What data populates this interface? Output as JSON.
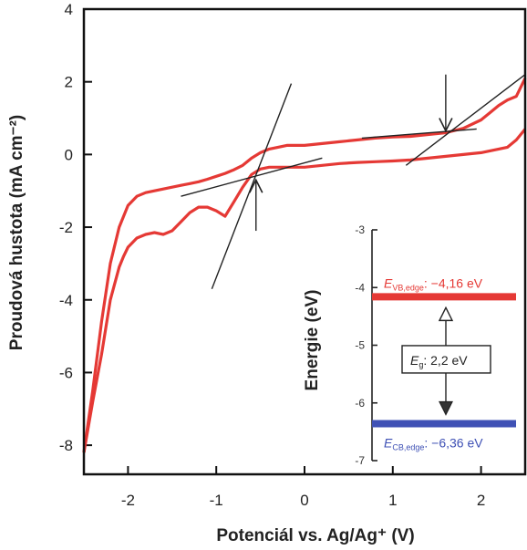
{
  "chart_data": {
    "type": "line",
    "xlabel": "Potenciál vs. Ag/Ag⁺ (V)",
    "ylabel": "Proudová hustota (mA cm⁻²)",
    "xlim": [
      -2.5,
      2.5
    ],
    "ylim": [
      -8.8,
      4.0
    ],
    "xticks": [
      -2,
      -1,
      0,
      1,
      2
    ],
    "yticks": [
      -8,
      -6,
      -4,
      -2,
      0,
      2,
      4
    ],
    "colors": {
      "series": "#e53935",
      "tangent": "#222222",
      "vb": "#e53935",
      "cb": "#3f51b5"
    },
    "series": [
      {
        "x": [
          -2.5,
          -2.4,
          -2.3,
          -2.2,
          -2.1,
          -2.05,
          -2.0,
          -1.9,
          -1.8,
          -1.7,
          -1.6,
          -1.5,
          -1.4,
          -1.3,
          -1.2,
          -1.1,
          -1.0,
          -0.9,
          -0.8,
          -0.7,
          -0.6,
          -0.5,
          -0.4,
          -0.3,
          -0.2,
          -0.1,
          0.0,
          0.2,
          0.4,
          0.6,
          0.8,
          1.0,
          1.2,
          1.4,
          1.6,
          1.8,
          2.0,
          2.1,
          2.2,
          2.3,
          2.4,
          2.5
        ],
        "y": [
          -8.2,
          -6.8,
          -5.5,
          -4.0,
          -3.1,
          -2.8,
          -2.55,
          -2.3,
          -2.2,
          -2.15,
          -2.2,
          -2.1,
          -1.85,
          -1.6,
          -1.45,
          -1.45,
          -1.55,
          -1.7,
          -1.3,
          -0.9,
          -0.55,
          -0.4,
          -0.35,
          -0.35,
          -0.35,
          -0.35,
          -0.35,
          -0.3,
          -0.25,
          -0.22,
          -0.2,
          -0.18,
          -0.15,
          -0.1,
          -0.05,
          0.0,
          0.05,
          0.1,
          0.15,
          0.2,
          0.4,
          0.7
        ]
      },
      {
        "x": [
          -2.5,
          -2.4,
          -2.3,
          -2.2,
          -2.1,
          -2.0,
          -1.9,
          -1.8,
          -1.7,
          -1.6,
          -1.5,
          -1.4,
          -1.3,
          -1.2,
          -1.1,
          -1.0,
          -0.9,
          -0.8,
          -0.7,
          -0.6,
          -0.5,
          -0.4,
          -0.3,
          -0.2,
          -0.1,
          0.0,
          0.2,
          0.4,
          0.6,
          0.8,
          1.0,
          1.2,
          1.4,
          1.6,
          1.8,
          2.0,
          2.1,
          2.2,
          2.3,
          2.4,
          2.5
        ],
        "y": [
          -8.2,
          -6.5,
          -4.6,
          -3.0,
          -2.0,
          -1.4,
          -1.15,
          -1.05,
          -1.0,
          -0.95,
          -0.9,
          -0.85,
          -0.8,
          -0.75,
          -0.68,
          -0.6,
          -0.52,
          -0.42,
          -0.3,
          -0.1,
          0.05,
          0.15,
          0.2,
          0.25,
          0.25,
          0.25,
          0.3,
          0.35,
          0.4,
          0.45,
          0.48,
          0.5,
          0.55,
          0.6,
          0.72,
          0.95,
          1.15,
          1.35,
          1.5,
          1.6,
          2.1
        ]
      }
    ],
    "tangents": [
      {
        "x": [
          -1.05,
          -0.15
        ],
        "y": [
          -3.7,
          1.95
        ]
      },
      {
        "x": [
          -1.4,
          0.2
        ],
        "y": [
          -1.15,
          -0.1
        ]
      },
      {
        "x": [
          1.15,
          2.5
        ],
        "y": [
          -0.3,
          2.2
        ]
      },
      {
        "x": [
          0.65,
          1.95
        ],
        "y": [
          0.45,
          0.7
        ]
      }
    ],
    "arrows": [
      {
        "x": -0.55,
        "from": -2.1,
        "to": -0.7
      },
      {
        "x": 1.6,
        "from": 2.2,
        "to": 0.65
      }
    ],
    "inset": {
      "ylabel": "Energie (eV)",
      "ylim": [
        -7,
        -3
      ],
      "yticks": [
        -3,
        -4,
        -5,
        -6,
        -7
      ],
      "vb_level": -4.16,
      "cb_level": -6.36,
      "vb_prefix": "E",
      "vb_sub": "VB,edge",
      "vb_value": ": −4,16 eV",
      "cb_prefix": "E",
      "cb_sub": "CB,edge",
      "cb_value": ": −6,36 eV",
      "gap_prefix": "E",
      "gap_sub": "g",
      "gap_value": ": 2,2 eV"
    }
  }
}
